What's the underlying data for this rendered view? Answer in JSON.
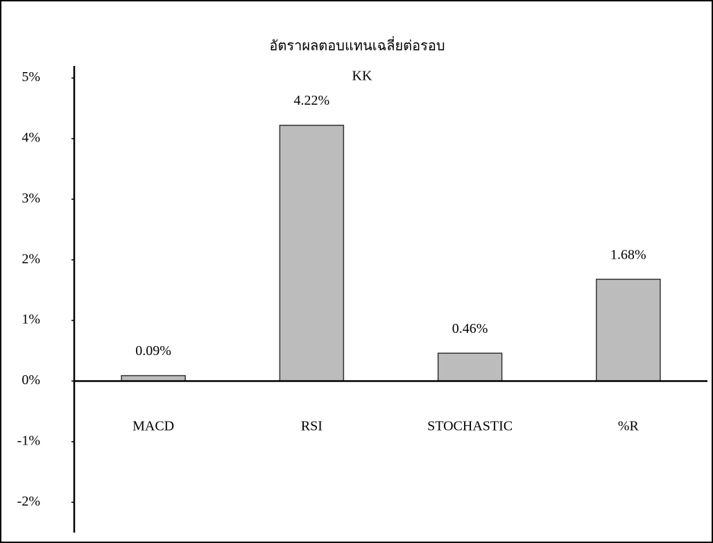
{
  "chart_data": {
    "type": "bar",
    "title": "อัตราผลตอบแทนเฉลี่ยต่อรอบ",
    "subtitle": "KK",
    "categories": [
      "MACD",
      "RSI",
      "STOCHASTIC",
      "%R"
    ],
    "values": [
      0.09,
      4.22,
      0.46,
      1.68
    ],
    "value_labels": [
      "0.09%",
      "4.22%",
      "0.46%",
      "1.68%"
    ],
    "color": "#bcbcbc",
    "ylim": [
      -2.5,
      5.2
    ],
    "yticks": [
      {
        "value": -2,
        "label": "-2%"
      },
      {
        "value": -1,
        "label": "-1%"
      },
      {
        "value": 0,
        "label": "0%"
      },
      {
        "value": 1,
        "label": "1%"
      },
      {
        "value": 2,
        "label": "2%"
      },
      {
        "value": 3,
        "label": "3%"
      },
      {
        "value": 4,
        "label": "4%"
      },
      {
        "value": 5,
        "label": "5%"
      }
    ],
    "grid": false
  }
}
